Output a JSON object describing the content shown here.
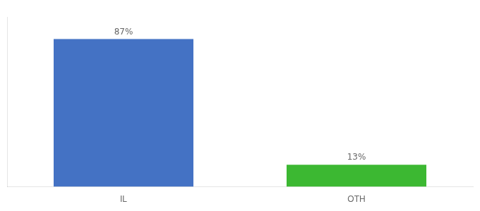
{
  "chart_data": {
    "type": "bar",
    "categories": [
      "IL",
      "OTH"
    ],
    "values": [
      87,
      13
    ],
    "value_labels": [
      "87%",
      "13%"
    ],
    "colors": [
      "#4472c4",
      "#3cb832"
    ],
    "ylim": [
      0,
      100
    ],
    "data_labels": true,
    "tick_labels": "x",
    "grid": false
  }
}
